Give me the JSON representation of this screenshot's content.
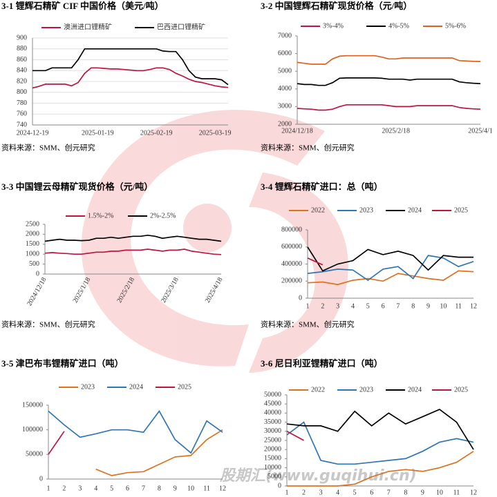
{
  "chart_data": [
    {
      "type": "line",
      "title": "3-1 锂辉石精矿 CIF 中国价格（美元/吨）",
      "source": "资料来源：SMM、创元研究",
      "categories": [
        "2024-12-19",
        null,
        null,
        null,
        null,
        null,
        null,
        null,
        null,
        null,
        "2025-01-19",
        null,
        null,
        null,
        null,
        null,
        null,
        null,
        null,
        "2025-02-19",
        null,
        null,
        null,
        null,
        null,
        null,
        null,
        null,
        "2025-03-19",
        null,
        null
      ],
      "ylim": [
        740,
        900
      ],
      "yticks": [
        740,
        760,
        780,
        800,
        820,
        840,
        860,
        880,
        900
      ],
      "grid": true,
      "series": [
        {
          "name": "澳洲进口锂精矿",
          "color": "#c0143c",
          "values": [
            808,
            811,
            815,
            815,
            815,
            815,
            812,
            818,
            835,
            845,
            845,
            844,
            843,
            843,
            842,
            841,
            840,
            840,
            842,
            845,
            845,
            842,
            835,
            830,
            824,
            820,
            818,
            815,
            812,
            810,
            809
          ]
        },
        {
          "name": "巴西进口锂精矿",
          "color": "#000000",
          "values": [
            840,
            840,
            840,
            845,
            845,
            845,
            845,
            860,
            880,
            880,
            880,
            880,
            880,
            880,
            880,
            880,
            880,
            880,
            880,
            880,
            876,
            875,
            875,
            860,
            840,
            828,
            825,
            825,
            825,
            823,
            814
          ]
        }
      ]
    },
    {
      "type": "line",
      "title": "3-2 中国锂辉石精矿现货价格（元/吨）",
      "source": "资料来源：SMM、创元研究",
      "categories": [
        "2024/12/18",
        null,
        null,
        null,
        null,
        null,
        null,
        null,
        null,
        null,
        null,
        null,
        null,
        null,
        "2025/2/18",
        null,
        null,
        null,
        null,
        null,
        null,
        null,
        null,
        null,
        null,
        null,
        "2025/4/1"
      ],
      "ylim": [
        2000,
        7000
      ],
      "yticks": [
        2000,
        3000,
        4000,
        5000,
        6000,
        7000
      ],
      "grid": false,
      "series": [
        {
          "name": "3%-4%",
          "color": "#c0143c",
          "values": [
            2900,
            2870,
            2850,
            2800,
            2800,
            2850,
            3000,
            3100,
            3100,
            3100,
            3100,
            3100,
            3100,
            3050,
            3000,
            3000,
            3000,
            3050,
            3050,
            3050,
            3050,
            3050,
            3050,
            2950,
            2900,
            2870,
            2850
          ]
        },
        {
          "name": "4%-5%",
          "color": "#000000",
          "values": [
            4300,
            4250,
            4250,
            4200,
            4200,
            4350,
            4600,
            4620,
            4620,
            4620,
            4620,
            4620,
            4600,
            4550,
            4550,
            4550,
            4500,
            4550,
            4550,
            4550,
            4550,
            4550,
            4550,
            4400,
            4350,
            4320,
            4300
          ]
        },
        {
          "name": "5%-6%",
          "color": "#e0601e",
          "values": [
            5500,
            5450,
            5400,
            5400,
            5400,
            5700,
            5850,
            5880,
            5880,
            5880,
            5880,
            5880,
            5800,
            5700,
            5700,
            5750,
            5750,
            5750,
            5750,
            5750,
            5750,
            5750,
            5750,
            5600,
            5580,
            5560,
            5550
          ]
        }
      ]
    },
    {
      "type": "line",
      "title": "3-3 中国锂云母精矿现货价格（元/吨）",
      "source": "资料来源：SMM、创元研究",
      "categories": [
        "2024/12/18",
        null,
        null,
        null,
        null,
        null,
        "2025/1/18",
        null,
        null,
        null,
        null,
        null,
        "2025/2/18",
        null,
        null,
        null,
        null,
        null,
        "2025/3/18",
        null,
        null,
        null,
        null,
        null,
        "2025/4/18"
      ],
      "ylim": [
        0,
        2500
      ],
      "yticks": [
        0,
        500,
        1000,
        1500,
        2000,
        2500
      ],
      "grid": false,
      "series": [
        {
          "name": "1.5%-2%",
          "color": "#c0143c",
          "values": [
            1050,
            1080,
            1050,
            1030,
            1000,
            1000,
            1050,
            1100,
            1100,
            1150,
            1150,
            1200,
            1200,
            1200,
            1250,
            1200,
            1150,
            1200,
            1200,
            1250,
            1150,
            1100,
            1050,
            1000,
            980
          ]
        },
        {
          "name": "2%-2.5%",
          "color": "#000000",
          "values": [
            1650,
            1700,
            1750,
            1700,
            1700,
            1680,
            1700,
            1800,
            1800,
            1850,
            1800,
            1850,
            1900,
            1900,
            1950,
            1900,
            1800,
            1850,
            1900,
            1850,
            1800,
            1750,
            1750,
            1700,
            1650
          ]
        }
      ]
    },
    {
      "type": "line",
      "title": "3-4 锂辉石精矿进口：总（吨）",
      "source": "资料来源：SMM、创元研究",
      "categories": [
        "1",
        "2",
        "3",
        "4",
        "5",
        "6",
        "7",
        "8",
        "9",
        "10",
        "11",
        "12"
      ],
      "ylim": [
        0,
        800000
      ],
      "yticks": [
        0,
        200000,
        400000,
        600000,
        800000
      ],
      "grid": false,
      "series": [
        {
          "name": "2022",
          "color": "#e0701e",
          "values": [
            180000,
            190000,
            160000,
            210000,
            230000,
            200000,
            290000,
            260000,
            230000,
            210000,
            320000,
            310000
          ]
        },
        {
          "name": "2023",
          "color": "#2e75b6",
          "values": [
            290000,
            310000,
            340000,
            330000,
            210000,
            340000,
            370000,
            230000,
            500000,
            470000,
            370000,
            430000
          ]
        },
        {
          "name": "2024",
          "color": "#000000",
          "values": [
            600000,
            320000,
            400000,
            440000,
            570000,
            510000,
            550000,
            500000,
            330000,
            500000,
            480000,
            480000
          ]
        },
        {
          "name": "2025",
          "color": "#c0143c",
          "values": [
            470000,
            390000,
            null,
            null,
            null,
            null,
            null,
            null,
            null,
            null,
            null,
            null
          ]
        }
      ]
    },
    {
      "type": "line",
      "title": "3-5 津巴布韦锂精矿进口（吨）",
      "categories": [
        "1",
        "2",
        "3",
        "4",
        "5",
        "6",
        "7",
        "8",
        "9",
        "10",
        "11",
        "12"
      ],
      "ylim": [
        0,
        150000
      ],
      "yticks": [
        0,
        50000,
        100000,
        150000
      ],
      "grid": false,
      "series": [
        {
          "name": "2023",
          "color": "#e0701e",
          "values": [
            null,
            null,
            null,
            20000,
            7000,
            13000,
            15000,
            30000,
            45000,
            48000,
            80000,
            100000
          ]
        },
        {
          "name": "2024",
          "color": "#2e75b6",
          "values": [
            138000,
            110000,
            85000,
            92000,
            100000,
            100000,
            95000,
            138000,
            80000,
            53000,
            118000,
            95000
          ]
        },
        {
          "name": "2025",
          "color": "#c0143c",
          "values": [
            50000,
            97000,
            null,
            null,
            null,
            null,
            null,
            null,
            null,
            null,
            null,
            null
          ]
        }
      ]
    },
    {
      "type": "line",
      "title": "3-6 尼日利亚锂精矿进口（吨）",
      "categories": [
        "1",
        "2",
        "3",
        "4",
        "5",
        "6",
        "7",
        "8",
        "9",
        "10",
        "11",
        "12"
      ],
      "ylim": [
        0,
        50000
      ],
      "yticks": [
        0,
        5000,
        10000,
        15000,
        20000,
        25000,
        30000,
        35000,
        40000,
        45000,
        50000
      ],
      "grid": false,
      "series": [
        {
          "name": "2022",
          "color": "#e0701e",
          "values": [
            0,
            0,
            0,
            0,
            1000,
            5000,
            8000,
            9000,
            8000,
            10000,
            13000,
            19000
          ]
        },
        {
          "name": "2023",
          "color": "#2e75b6",
          "values": [
            28000,
            35000,
            14000,
            12000,
            12000,
            13000,
            14000,
            15000,
            19000,
            24000,
            26000,
            24000
          ]
        },
        {
          "name": "2024",
          "color": "#000000",
          "values": [
            34000,
            33000,
            33000,
            30000,
            41000,
            33000,
            40000,
            34000,
            38000,
            42000,
            35000,
            20000
          ]
        },
        {
          "name": "2025",
          "color": "#c0143c",
          "values": [
            30000,
            25000,
            null,
            null,
            null,
            null,
            null,
            null,
            null,
            null,
            null,
            null
          ]
        }
      ]
    }
  ],
  "watermark": "股期汇(www.guqihui.cn)"
}
